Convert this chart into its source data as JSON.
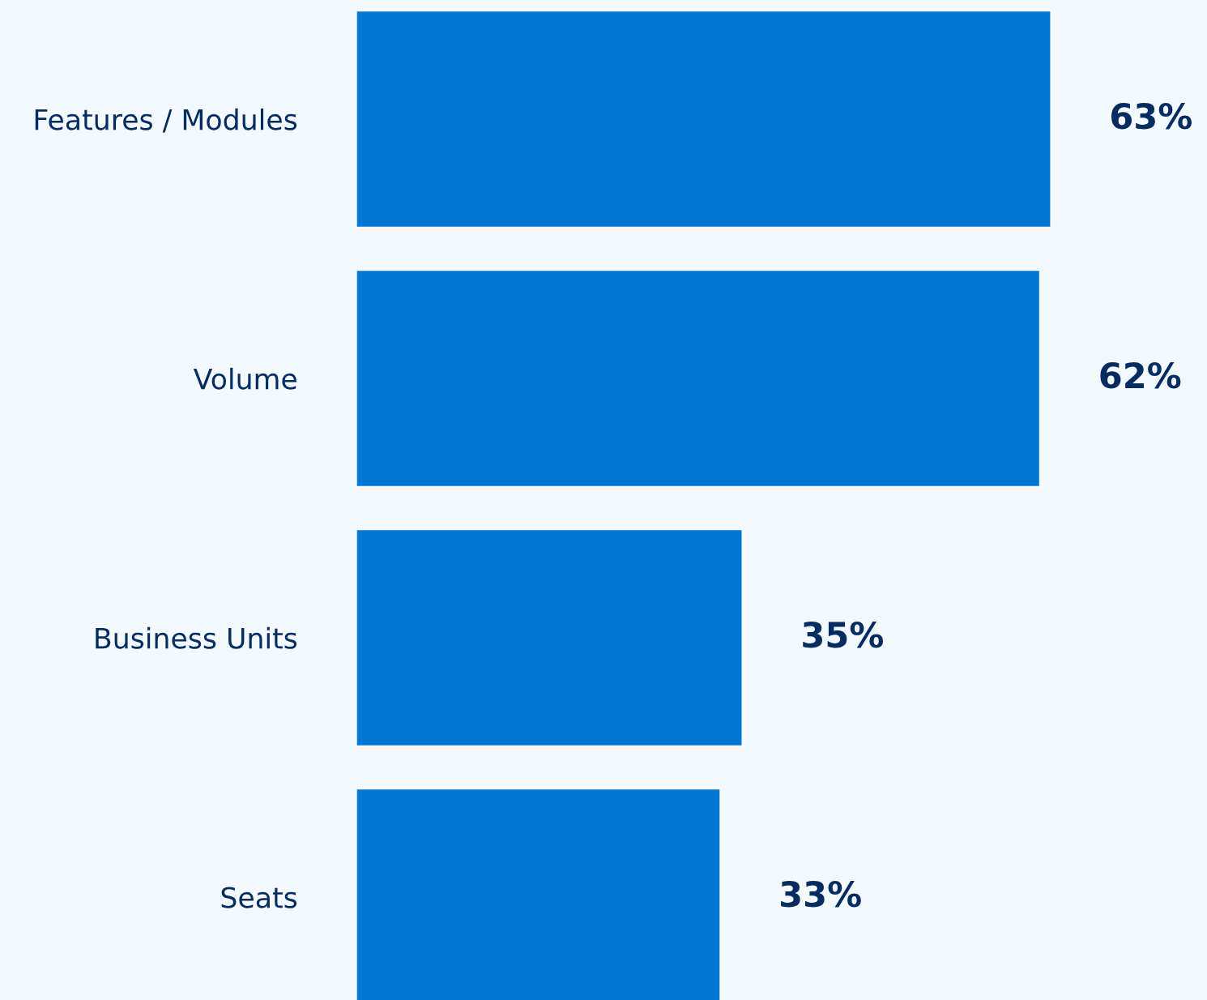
{
  "chart_data": {
    "type": "bar",
    "orientation": "horizontal",
    "categories": [
      "Features / Modules",
      "Volume",
      "Business Units",
      "Seats"
    ],
    "values": [
      63,
      62,
      35,
      33
    ],
    "value_labels": [
      "63%",
      "62%",
      "35%",
      "33%"
    ],
    "color": "#0176d3",
    "grid": false,
    "legend": false
  }
}
